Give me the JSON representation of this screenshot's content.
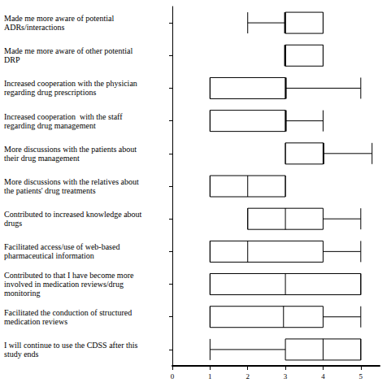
{
  "chart_data": {
    "type": "boxplot",
    "orientation": "horizontal",
    "categories": [
      "Made me more aware of potential\nADRs/interactions",
      "Made me more aware of other potential\nDRP",
      "Increased cooperation with the physician\nregarding drug prescriptions",
      "Increased cooperation  with the staff\nregarding drug management",
      "More discussions with the patients about\ntheir drug management",
      "More discussions with the relatives about\nthe patients' drug treatments",
      "Contributed to increased knowledge about\ndrugs",
      "Facilitated access/use of web-based\npharmaceutical information",
      "Contributed to that I have become more\ninvolved in medication reviews/drug\nmonitoring",
      "Facilitated the conduction of structured\nmedication reviews",
      "I will continue to use the CDSS after this\nstudy ends"
    ],
    "values": [
      [
        2,
        3,
        3,
        4,
        4
      ],
      [
        3,
        3,
        3,
        4,
        4
      ],
      [
        1,
        1,
        3,
        3,
        5
      ],
      [
        1,
        1,
        3,
        3,
        4
      ],
      [
        3,
        3,
        4,
        4,
        5.3
      ],
      [
        1,
        1,
        2,
        3,
        3
      ],
      [
        2,
        2,
        3,
        4,
        5
      ],
      [
        1,
        1,
        2,
        4,
        5
      ],
      [
        1,
        1,
        3,
        5,
        5
      ],
      [
        1,
        1,
        2.95,
        4,
        5
      ],
      [
        1,
        3,
        4,
        5,
        5
      ]
    ],
    "color": "#000000",
    "xlim": [
      0,
      5.5
    ],
    "xticks": [
      0,
      1,
      2,
      3,
      4,
      5
    ],
    "grid": false
  }
}
